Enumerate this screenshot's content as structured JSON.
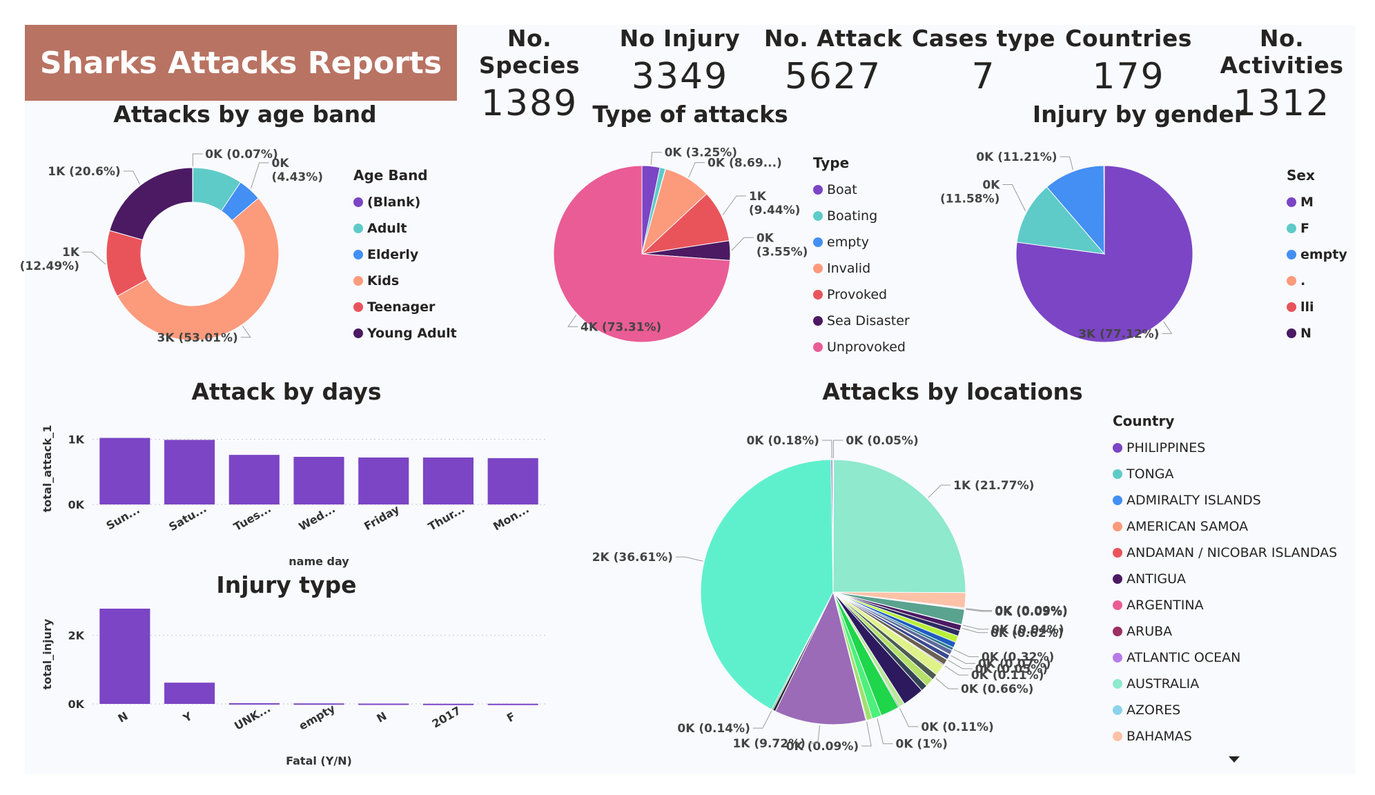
{
  "dashboard": {
    "title": "Sharks Attacks Reports",
    "kpis": [
      {
        "label": "No. Species",
        "value": "1389"
      },
      {
        "label": "No Injury",
        "value": "3349"
      },
      {
        "label": "No. Attack",
        "value": "5627"
      },
      {
        "label": "Cases type",
        "value": "7"
      },
      {
        "label": "Countries",
        "value": "179"
      },
      {
        "label": "No. Activities",
        "value": "1312"
      }
    ]
  },
  "chart_data": [
    {
      "type": "pie",
      "variant": "donut",
      "title": "Attacks by age band",
      "legend_title": "Age Band",
      "categories": [
        "(Blank)",
        "Adult",
        "Elderly",
        "Kids",
        "Teenager",
        "Young Adult"
      ],
      "percent": [
        0.07,
        9.3,
        4.43,
        53.01,
        12.49,
        20.6
      ],
      "data_labels": [
        "0K (0.07%)",
        "",
        "0K (4.43%)",
        "3K (53.01%)",
        "1K (12.49%)",
        "1K (20.6%)"
      ],
      "colors": [
        "#7b45c5",
        "#5ecbc8",
        "#438ff3",
        "#fc9a7c",
        "#e9545b",
        "#4b1a63"
      ],
      "legend_placement": "right"
    },
    {
      "type": "pie",
      "title": "Type of attacks",
      "legend_title": "Type",
      "categories": [
        "Boat",
        "Boating",
        "empty",
        "Invalid",
        "Provoked",
        "Sea Disaster",
        "Unprovoked"
      ],
      "percent": [
        3.25,
        1.0,
        0.06,
        8.69,
        9.44,
        3.55,
        73.31
      ],
      "data_labels": [
        "0K (3.25%)",
        "",
        "",
        "0K (8.69...)",
        "1K (9.44%)",
        "0K (3.55%)",
        "4K (73.31%)"
      ],
      "colors": [
        "#7b45c5",
        "#5ecbc8",
        "#438ff3",
        "#fc9a7c",
        "#e9545b",
        "#4b1a63",
        "#ea5c95"
      ],
      "legend_placement": "right"
    },
    {
      "type": "pie",
      "title": "Injury by gender",
      "legend_title": "Sex",
      "categories": [
        "M",
        "F",
        "empty",
        ".",
        "lli",
        "N"
      ],
      "percent": [
        77.12,
        11.58,
        11.21,
        0.03,
        0.03,
        0.03
      ],
      "data_labels": [
        "3K (77.12%)",
        "0K (11.58%)",
        "0K (11.21%)",
        "",
        "",
        ""
      ],
      "colors": [
        "#7b45c5",
        "#5ecbc8",
        "#438ff3",
        "#fc9a7c",
        "#e9545b",
        "#4b1a63"
      ],
      "legend_placement": "right"
    },
    {
      "type": "bar",
      "title": "Attack by days",
      "xlabel": "name day",
      "ylabel": "total_attack_1",
      "categories": [
        "Sun...",
        "Satu...",
        "Tues...",
        "Wed...",
        "Friday",
        "Thur...",
        "Mon..."
      ],
      "values": [
        1020,
        990,
        760,
        730,
        720,
        720,
        710
      ],
      "yticks": [
        "0K",
        "1K"
      ],
      "ylim": [
        0,
        1100
      ],
      "grid": true,
      "color": "#7b45c5"
    },
    {
      "type": "bar",
      "title": "Injury type",
      "xlabel": "Fatal (Y/N)",
      "ylabel": "total_injury",
      "categories": [
        "N",
        "Y",
        "UNK...",
        "empty",
        "N",
        "2017",
        "F"
      ],
      "values": [
        2780,
        620,
        20,
        15,
        10,
        5,
        5
      ],
      "yticks": [
        "0K",
        "2K"
      ],
      "ylim": [
        0,
        2900
      ],
      "grid": true,
      "color": "#7b45c5"
    },
    {
      "type": "pie",
      "title": "Attacks by locations",
      "legend_title": "Country",
      "legend_entries": [
        "PHILIPPINES",
        "TONGA",
        "ADMIRALTY ISLANDS",
        "AMERICAN SAMOA",
        "ANDAMAN / NICOBAR ISLANDAS",
        "ANTIGUA",
        "ARGENTINA",
        "ARUBA",
        "ATLANTIC OCEAN",
        "AUSTRALIA",
        "AZORES",
        "BAHAMAS"
      ],
      "legend_colors": [
        "#7b45c5",
        "#5ecbc8",
        "#438ff3",
        "#fc9a7c",
        "#e9545b",
        "#4b1a63",
        "#ea5c95",
        "#9c2e63",
        "#b77be8",
        "#8fe9cc",
        "#89d3ea",
        "#fcc2a8"
      ],
      "slices": [
        {
          "percent": 0.05,
          "label": "0K (0.05%)",
          "color": "#b77be8"
        },
        {
          "percent": 21.77,
          "label": "1K (21.77%)",
          "color": "#8fe9cc"
        },
        {
          "percent": 1.6,
          "label": "",
          "color": "#fcc2a8"
        },
        {
          "percent": 0.09,
          "label": "0K (0.09%)",
          "color": "#b77be8"
        },
        {
          "percent": 0.09,
          "label": "0K (0.09%)",
          "color": "#c2e0a8"
        },
        {
          "percent": 1.6,
          "label": "",
          "color": "#5aa38e"
        },
        {
          "percent": 0.04,
          "label": "0K (0.04%)",
          "color": "#e9545b"
        },
        {
          "percent": 0.62,
          "label": "0K (0.62%)",
          "color": "#4b1a63"
        },
        {
          "percent": 0.6,
          "label": "",
          "color": "#2d2d60"
        },
        {
          "percent": 0.7,
          "label": "",
          "color": "#b8f03a"
        },
        {
          "percent": 0.6,
          "label": "",
          "color": "#1d5cc2"
        },
        {
          "percent": 0.32,
          "label": "0K (0.32%)",
          "color": "#2a7a8c"
        },
        {
          "percent": 0.5,
          "label": "",
          "color": "#5d6a9c"
        },
        {
          "percent": 0.07,
          "label": "0K (0.07%)",
          "color": "#f0c060"
        },
        {
          "percent": 0.5,
          "label": "",
          "color": "#3a4a8e"
        },
        {
          "percent": 0.05,
          "label": "0K (0.05%)",
          "color": "#a4c43a"
        },
        {
          "percent": 0.6,
          "label": "",
          "color": "#6a5f52"
        },
        {
          "percent": 0.11,
          "label": "0K (0.11%)",
          "color": "#1a1a40"
        },
        {
          "percent": 1.2,
          "label": "",
          "color": "#dff28a"
        },
        {
          "percent": 0.66,
          "label": "0K (0.66%)",
          "color": "#4b5d4f"
        },
        {
          "percent": 0.9,
          "label": "",
          "color": "#b5e06a"
        },
        {
          "percent": 0.7,
          "label": "",
          "color": "#334455"
        },
        {
          "percent": 2.3,
          "label": "",
          "color": "#2d1a5e"
        },
        {
          "percent": 0.6,
          "label": "",
          "color": "#b8e89a"
        },
        {
          "percent": 0.11,
          "label": "0K (0.11%)",
          "color": "#0d3b2d"
        },
        {
          "percent": 2.0,
          "label": "",
          "color": "#1fd64a"
        },
        {
          "percent": 1.0,
          "label": "0K (1%)",
          "color": "#4cf07b"
        },
        {
          "percent": 0.6,
          "label": "",
          "color": "#a0e070"
        },
        {
          "percent": 0.09,
          "label": "0K (0.09%)",
          "color": "#7f7f2a"
        },
        {
          "percent": 9.72,
          "label": "1K (9.72%)",
          "color": "#9b6bb8"
        },
        {
          "percent": 0.3,
          "label": "",
          "color": "#2a2a2a"
        },
        {
          "percent": 0.14,
          "label": "0K (0.14%)",
          "color": "#3e8a78"
        },
        {
          "percent": 36.61,
          "label": "2K (36.61%)",
          "color": "#5ef0cc"
        },
        {
          "percent": 0.18,
          "label": "0K (0.18%)",
          "color": "#9b6bb8"
        },
        {
          "percent": 0.05,
          "label": "",
          "color": "#e9545b"
        }
      ],
      "legend_placement": "right"
    }
  ]
}
